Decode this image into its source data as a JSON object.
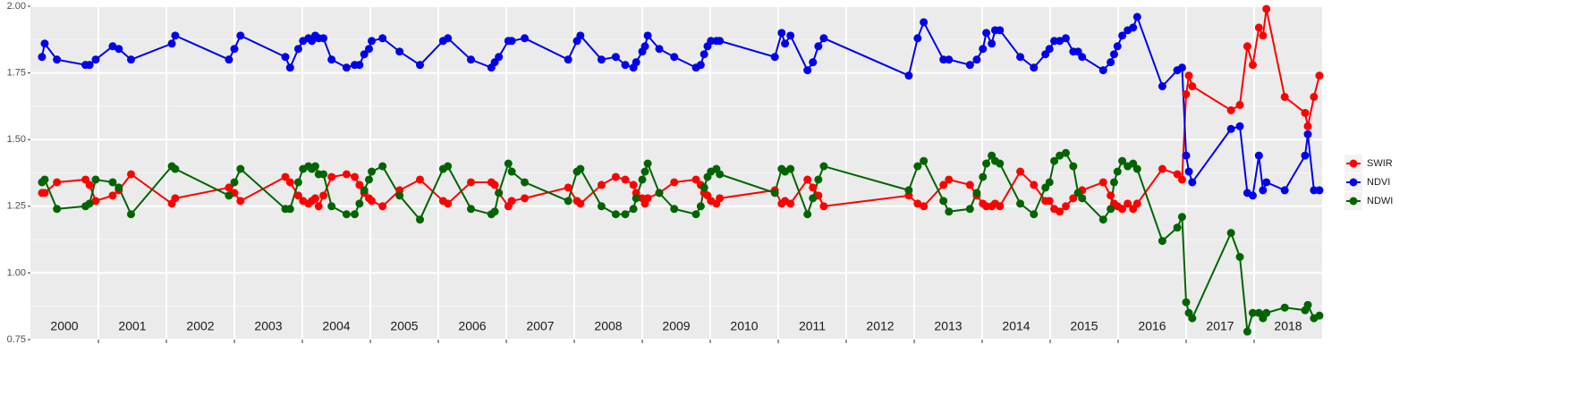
{
  "chart_data": {
    "type": "line",
    "x": [
      2000.17,
      2000.21,
      2000.39,
      2000.81,
      2000.87,
      2000.96,
      2001.21,
      2001.3,
      2001.48,
      2002.08,
      2002.13,
      2002.92,
      2003.0,
      2003.09,
      2003.75,
      2003.82,
      2003.94,
      2004.01,
      2004.09,
      2004.14,
      2004.19,
      2004.24,
      2004.31,
      2004.43,
      2004.65,
      2004.77,
      2004.84,
      2004.91,
      2004.98,
      2005.02,
      2005.18,
      2005.43,
      2005.73,
      2006.07,
      2006.14,
      2006.48,
      2006.78,
      2006.83,
      2006.89,
      2007.03,
      2007.08,
      2007.27,
      2007.91,
      2008.04,
      2008.09,
      2008.4,
      2008.61,
      2008.75,
      2008.87,
      2008.91,
      2009.0,
      2009.04,
      2009.08,
      2009.25,
      2009.47,
      2009.79,
      2009.86,
      2009.91,
      2009.96,
      2010.01,
      2010.09,
      2010.14,
      2010.95,
      2011.05,
      2011.1,
      2011.18,
      2011.43,
      2011.51,
      2011.59,
      2011.67,
      2012.92,
      2013.05,
      2013.14,
      2013.43,
      2013.51,
      2013.82,
      2013.92,
      2014.01,
      2014.06,
      2014.14,
      2014.19,
      2014.26,
      2014.56,
      2014.76,
      2014.93,
      2014.99,
      2015.06,
      2015.14,
      2015.23,
      2015.34,
      2015.41,
      2015.47,
      2015.78,
      2015.89,
      2015.94,
      2015.99,
      2016.06,
      2016.14,
      2016.22,
      2016.28,
      2016.65,
      2016.87,
      2016.94,
      2017.0,
      2017.04,
      2017.09,
      2017.66,
      2017.79,
      2017.9,
      2017.98,
      2018.07,
      2018.13,
      2018.18,
      2018.45,
      2018.75,
      2018.79,
      2018.88,
      2018.96
    ],
    "series": [
      {
        "name": "SWIR",
        "color": "#ff0000",
        "values": [
          1.3,
          1.3,
          1.34,
          1.35,
          1.33,
          1.27,
          1.29,
          1.31,
          1.37,
          1.26,
          1.28,
          1.32,
          1.3,
          1.27,
          1.36,
          1.34,
          1.29,
          1.27,
          1.26,
          1.27,
          1.28,
          1.25,
          1.29,
          1.36,
          1.37,
          1.36,
          1.33,
          1.3,
          1.28,
          1.27,
          1.25,
          1.31,
          1.35,
          1.27,
          1.26,
          1.34,
          1.34,
          1.33,
          1.3,
          1.25,
          1.27,
          1.28,
          1.32,
          1.27,
          1.26,
          1.33,
          1.36,
          1.35,
          1.33,
          1.3,
          1.28,
          1.26,
          1.28,
          1.3,
          1.34,
          1.35,
          1.33,
          1.3,
          1.29,
          1.27,
          1.26,
          1.28,
          1.31,
          1.26,
          1.27,
          1.26,
          1.35,
          1.32,
          1.29,
          1.25,
          1.29,
          1.26,
          1.25,
          1.33,
          1.35,
          1.33,
          1.29,
          1.26,
          1.25,
          1.25,
          1.26,
          1.25,
          1.38,
          1.33,
          1.27,
          1.27,
          1.24,
          1.23,
          1.25,
          1.28,
          1.3,
          1.31,
          1.34,
          1.29,
          1.26,
          1.25,
          1.24,
          1.26,
          1.24,
          1.26,
          1.39,
          1.37,
          1.35,
          1.67,
          1.74,
          1.7,
          1.61,
          1.63,
          1.85,
          1.78,
          1.92,
          1.89,
          1.99,
          1.66,
          1.6,
          1.55,
          1.66,
          1.74
        ]
      },
      {
        "name": "NDVI",
        "color": "#0000ee",
        "values": [
          1.81,
          1.86,
          1.8,
          1.78,
          1.78,
          1.8,
          1.85,
          1.84,
          1.8,
          1.86,
          1.89,
          1.8,
          1.84,
          1.89,
          1.81,
          1.77,
          1.84,
          1.87,
          1.88,
          1.87,
          1.89,
          1.88,
          1.88,
          1.8,
          1.77,
          1.78,
          1.78,
          1.82,
          1.84,
          1.87,
          1.88,
          1.83,
          1.78,
          1.87,
          1.88,
          1.8,
          1.77,
          1.79,
          1.81,
          1.87,
          1.87,
          1.88,
          1.8,
          1.87,
          1.89,
          1.8,
          1.81,
          1.78,
          1.77,
          1.79,
          1.83,
          1.85,
          1.89,
          1.84,
          1.81,
          1.77,
          1.78,
          1.82,
          1.85,
          1.87,
          1.87,
          1.87,
          1.81,
          1.9,
          1.86,
          1.89,
          1.76,
          1.79,
          1.85,
          1.88,
          1.74,
          1.88,
          1.94,
          1.8,
          1.8,
          1.78,
          1.8,
          1.84,
          1.9,
          1.86,
          1.91,
          1.91,
          1.81,
          1.77,
          1.82,
          1.84,
          1.87,
          1.87,
          1.88,
          1.83,
          1.83,
          1.81,
          1.76,
          1.79,
          1.82,
          1.85,
          1.89,
          1.91,
          1.92,
          1.96,
          1.7,
          1.76,
          1.77,
          1.44,
          1.38,
          1.34,
          1.54,
          1.55,
          1.3,
          1.29,
          1.44,
          1.31,
          1.34,
          1.31,
          1.44,
          1.52,
          1.31,
          1.31
        ]
      },
      {
        "name": "NDWI",
        "color": "#006400",
        "values": [
          1.34,
          1.35,
          1.24,
          1.25,
          1.26,
          1.35,
          1.34,
          1.32,
          1.22,
          1.4,
          1.39,
          1.29,
          1.34,
          1.39,
          1.24,
          1.24,
          1.34,
          1.39,
          1.4,
          1.39,
          1.4,
          1.37,
          1.37,
          1.25,
          1.22,
          1.22,
          1.26,
          1.31,
          1.35,
          1.38,
          1.4,
          1.29,
          1.2,
          1.39,
          1.4,
          1.24,
          1.22,
          1.23,
          1.3,
          1.41,
          1.38,
          1.34,
          1.27,
          1.38,
          1.39,
          1.25,
          1.22,
          1.22,
          1.24,
          1.28,
          1.35,
          1.38,
          1.41,
          1.3,
          1.24,
          1.22,
          1.25,
          1.32,
          1.36,
          1.38,
          1.39,
          1.37,
          1.3,
          1.39,
          1.38,
          1.39,
          1.22,
          1.28,
          1.35,
          1.4,
          1.31,
          1.4,
          1.42,
          1.27,
          1.23,
          1.24,
          1.3,
          1.36,
          1.41,
          1.44,
          1.42,
          1.41,
          1.26,
          1.22,
          1.32,
          1.34,
          1.42,
          1.44,
          1.45,
          1.4,
          1.3,
          1.28,
          1.2,
          1.24,
          1.34,
          1.38,
          1.42,
          1.4,
          1.41,
          1.39,
          1.12,
          1.17,
          1.21,
          0.89,
          0.85,
          0.83,
          1.15,
          1.06,
          0.78,
          0.85,
          0.85,
          0.83,
          0.85,
          0.87,
          0.86,
          0.88,
          0.83,
          0.84
        ]
      }
    ],
    "xlim": [
      2000,
      2019
    ],
    "ylim": [
      0.75,
      2.0
    ],
    "yticks": [
      {
        "value": 0.75,
        "label": "0.75"
      },
      {
        "value": 1,
        "label": "1.00"
      },
      {
        "value": 1.25,
        "label": "1.25"
      },
      {
        "value": 1.5,
        "label": "1.50"
      },
      {
        "value": 1.75,
        "label": "1.75"
      },
      {
        "value": 2,
        "label": "2.00"
      }
    ],
    "xticks": [
      {
        "value": 2000.5,
        "label": "2000"
      },
      {
        "value": 2001.5,
        "label": "2001"
      },
      {
        "value": 2002.5,
        "label": "2002"
      },
      {
        "value": 2003.5,
        "label": "2003"
      },
      {
        "value": 2004.5,
        "label": "2004"
      },
      {
        "value": 2005.5,
        "label": "2005"
      },
      {
        "value": 2006.5,
        "label": "2006"
      },
      {
        "value": 2007.5,
        "label": "2007"
      },
      {
        "value": 2008.5,
        "label": "2008"
      },
      {
        "value": 2009.5,
        "label": "2009"
      },
      {
        "value": 2010.5,
        "label": "2010"
      },
      {
        "value": 2011.5,
        "label": "2011"
      },
      {
        "value": 2012.5,
        "label": "2012"
      },
      {
        "value": 2013.5,
        "label": "2013"
      },
      {
        "value": 2014.5,
        "label": "2014"
      },
      {
        "value": 2015.5,
        "label": "2015"
      },
      {
        "value": 2016.5,
        "label": "2016"
      },
      {
        "value": 2017.5,
        "label": "2017"
      },
      {
        "value": 2018.5,
        "label": "2018"
      }
    ],
    "xgrid": [
      2001,
      2002,
      2003,
      2004,
      2005,
      2006,
      2007,
      2008,
      2009,
      2010,
      2011,
      2012,
      2013,
      2014,
      2015,
      2016,
      2017,
      2018
    ],
    "grid": true,
    "legend": "right"
  }
}
